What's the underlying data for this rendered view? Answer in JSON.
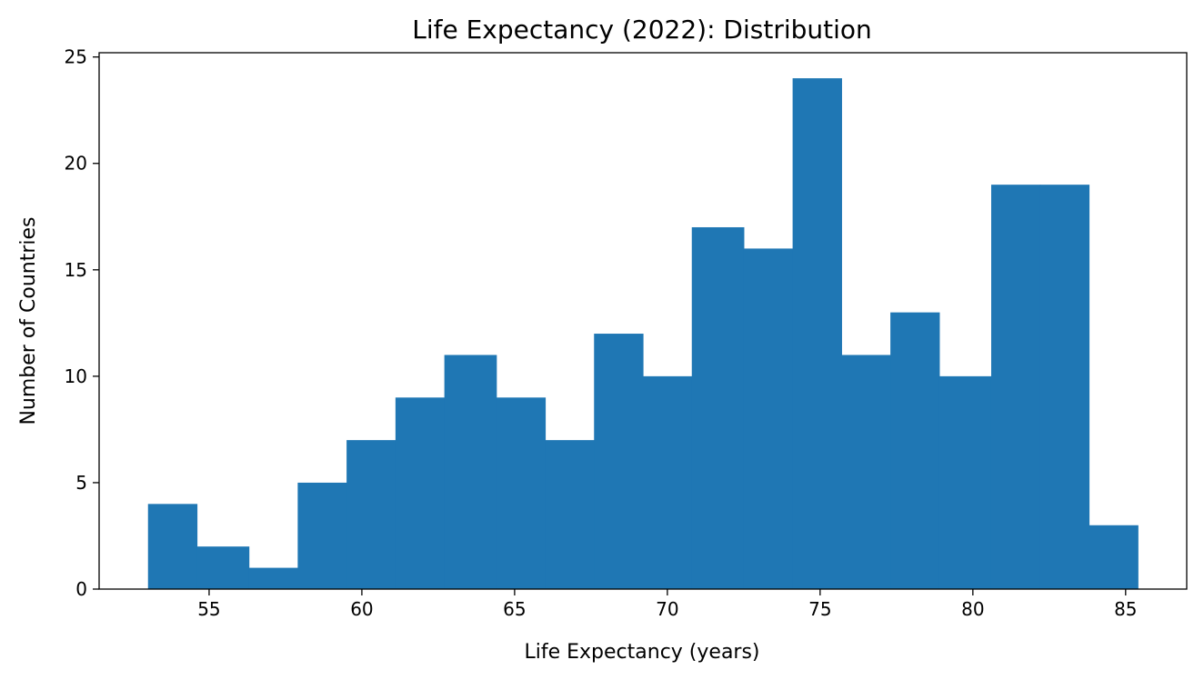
{
  "chart_data": {
    "type": "bar",
    "title": "Life Expectancy (2022): Distribution",
    "xlabel": "Life Expectancy (years)",
    "ylabel": "Number of Countries",
    "bins": [
      {
        "start": 53.0,
        "end": 54.6,
        "count": 4
      },
      {
        "start": 54.6,
        "end": 56.3,
        "count": 2
      },
      {
        "start": 56.3,
        "end": 57.9,
        "count": 1
      },
      {
        "start": 57.9,
        "end": 59.5,
        "count": 5
      },
      {
        "start": 59.5,
        "end": 61.1,
        "count": 7
      },
      {
        "start": 61.1,
        "end": 62.7,
        "count": 9
      },
      {
        "start": 62.7,
        "end": 64.4,
        "count": 11
      },
      {
        "start": 64.4,
        "end": 66.0,
        "count": 9
      },
      {
        "start": 66.0,
        "end": 67.6,
        "count": 7
      },
      {
        "start": 67.6,
        "end": 69.2,
        "count": 12
      },
      {
        "start": 69.2,
        "end": 70.8,
        "count": 10
      },
      {
        "start": 70.8,
        "end": 72.5,
        "count": 17
      },
      {
        "start": 72.5,
        "end": 74.1,
        "count": 16
      },
      {
        "start": 74.1,
        "end": 75.7,
        "count": 24
      },
      {
        "start": 75.7,
        "end": 77.3,
        "count": 11
      },
      {
        "start": 77.3,
        "end": 78.9,
        "count": 13
      },
      {
        "start": 78.9,
        "end": 80.6,
        "count": 10
      },
      {
        "start": 80.6,
        "end": 82.2,
        "count": 19
      },
      {
        "start": 82.2,
        "end": 83.8,
        "count": 19
      },
      {
        "start": 83.8,
        "end": 85.4,
        "count": 3
      }
    ],
    "xticks": [
      55,
      60,
      65,
      70,
      75,
      80,
      85
    ],
    "yticks": [
      0,
      5,
      10,
      15,
      20,
      25
    ],
    "xlim": [
      51.4,
      87.0
    ],
    "ylim": [
      0,
      25.2
    ],
    "bar_color": "#1f77b4",
    "grid": false,
    "legend": "none"
  }
}
